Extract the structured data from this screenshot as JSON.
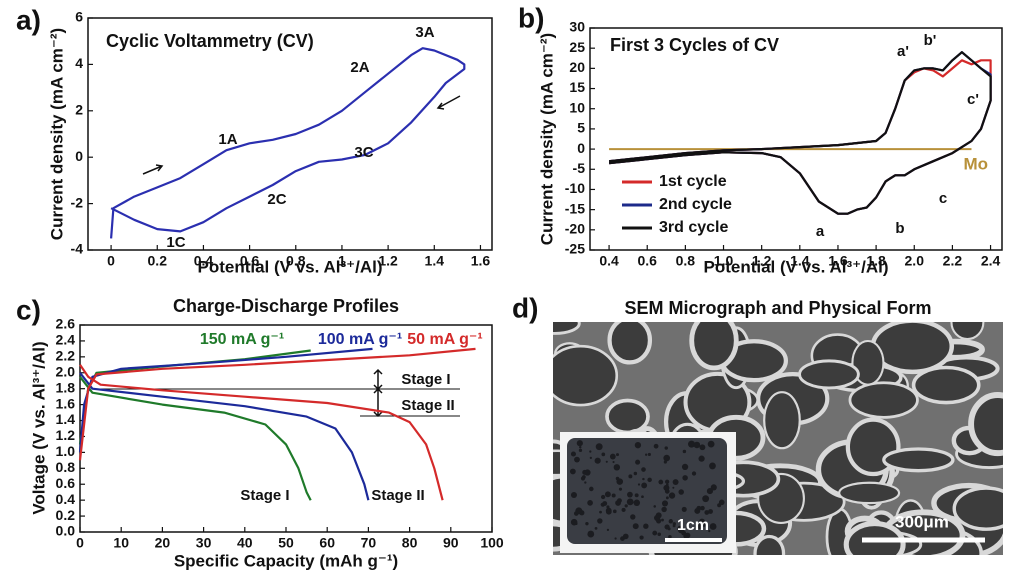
{
  "chart_data": [
    {
      "type": "line",
      "panel_label": "a)",
      "title": "Cyclic Voltammetry (CV)",
      "x_label": "Potential (V vs. Al³⁺/Al)",
      "y_label": "Current density (mA cm⁻²)",
      "xlim": [
        -0.1,
        1.65
      ],
      "ylim": [
        -4,
        6
      ],
      "xticks": [
        0,
        0.2,
        0.4,
        0.6,
        0.8,
        1,
        1.2,
        1.4,
        1.6
      ],
      "yticks": [
        -4,
        -2,
        0,
        2,
        4,
        6
      ],
      "annotations": [
        "1A",
        "2A",
        "3A",
        "1C",
        "2C",
        "3C"
      ],
      "series": [
        {
          "color": "#2b2fb0",
          "x": [
            0,
            0.01,
            0.1,
            0.2,
            0.3,
            0.4,
            0.5,
            0.6,
            0.7,
            0.8,
            0.9,
            1.0,
            1.1,
            1.2,
            1.3,
            1.35,
            1.4,
            1.5,
            1.53,
            1.53,
            1.45,
            1.4,
            1.3,
            1.2,
            1.1,
            1.0,
            0.9,
            0.8,
            0.7,
            0.6,
            0.5,
            0.4,
            0.3,
            0.2,
            0.1,
            0
          ],
          "values": [
            -3.5,
            -2.2,
            -1.7,
            -1.3,
            -0.9,
            -0.3,
            0.3,
            0.6,
            0.75,
            1.0,
            1.4,
            2.0,
            2.8,
            3.6,
            4.4,
            4.7,
            4.6,
            4.2,
            4.0,
            3.8,
            3.2,
            2.6,
            1.5,
            0.6,
            0.1,
            -0.1,
            -0.2,
            -0.6,
            -1.2,
            -1.7,
            -2.2,
            -2.8,
            -3.2,
            -3.1,
            -2.7,
            -2.2
          ]
        }
      ]
    },
    {
      "type": "line",
      "panel_label": "b)",
      "title": "First 3 Cycles of CV",
      "x_label": "Potential (V vs. Al³⁺/Al)",
      "y_label": "Current density (mA cm⁻²)",
      "xlim": [
        0.3,
        2.46
      ],
      "ylim": [
        -25,
        30
      ],
      "xticks": [
        0.4,
        0.6,
        0.8,
        {
          "value": 1,
          "label": "1.0"
        },
        1.2,
        1.4,
        1.6,
        1.8,
        {
          "value": 2,
          "label": "2.0"
        },
        2.2,
        2.4
      ],
      "yticks": [
        -25,
        -20,
        -15,
        -10,
        -5,
        0,
        5,
        10,
        15,
        20,
        25,
        30
      ],
      "annotations": [
        "a'",
        "b'",
        "c'",
        "a",
        "b",
        "c"
      ],
      "legend": "lower-left",
      "reference_line": {
        "name": "Mo",
        "color": "#b8913a",
        "value": 0,
        "x": [
          0.4,
          2.3
        ]
      },
      "series": [
        {
          "name": "1st cycle",
          "color": "#d42a2a",
          "x": [
            0.4,
            0.6,
            0.8,
            1.0,
            1.2,
            1.4,
            1.6,
            1.8,
            1.85,
            1.9,
            1.95,
            2.0,
            2.05,
            2.1,
            2.15,
            2.2,
            2.25,
            2.3,
            2.35,
            2.4,
            2.4,
            2.35,
            2.3,
            2.2,
            2.1,
            2.0,
            1.95,
            1.9,
            1.85,
            1.8,
            1.75,
            1.7,
            1.65,
            1.6,
            1.5,
            1.4,
            1.3,
            1.2,
            1.0,
            0.8,
            0.6,
            0.4
          ],
          "values": [
            -3,
            -2,
            -1,
            -0.3,
            0,
            0.5,
            1,
            2,
            4,
            10,
            17,
            19,
            20,
            19.5,
            18,
            20,
            22,
            21,
            22,
            22,
            12,
            5,
            2,
            -1,
            -3,
            -5,
            -6.5,
            -6.5,
            -8,
            -12,
            -14.5,
            -15,
            -16,
            -16,
            -13,
            -6,
            -2,
            -1,
            -0.8,
            -1.5,
            -2.5,
            -3.5
          ]
        },
        {
          "name": "2nd cycle",
          "color": "#1c2a8a",
          "x": [
            0.4,
            0.6,
            0.8,
            1.0,
            1.2,
            1.4,
            1.6,
            1.8,
            1.85,
            1.9,
            1.95,
            2.0,
            2.05,
            2.1,
            2.15,
            2.2,
            2.25,
            2.3,
            2.35,
            2.4,
            2.4,
            2.35,
            2.3,
            2.2,
            2.1,
            2.0,
            1.95,
            1.9,
            1.85,
            1.8,
            1.75,
            1.7,
            1.65,
            1.6,
            1.5,
            1.4,
            1.3,
            1.2,
            1.0,
            0.8,
            0.6,
            0.4
          ],
          "values": [
            -3,
            -2,
            -1,
            -0.3,
            0,
            0.5,
            1,
            2,
            4,
            10,
            17,
            19.5,
            20,
            20,
            19.5,
            22,
            24,
            22,
            20,
            18.5,
            12,
            5,
            2,
            -1,
            -3,
            -5,
            -6.5,
            -6.5,
            -8,
            -12,
            -14.5,
            -15,
            -16,
            -16,
            -13,
            -6,
            -2,
            -1,
            -0.8,
            -1.5,
            -2.5,
            -3.5
          ]
        },
        {
          "name": "3rd cycle",
          "color": "#111111",
          "x": [
            0.4,
            0.6,
            0.8,
            1.0,
            1.2,
            1.4,
            1.6,
            1.8,
            1.85,
            1.9,
            1.95,
            2.0,
            2.05,
            2.1,
            2.15,
            2.2,
            2.25,
            2.3,
            2.35,
            2.4,
            2.4,
            2.35,
            2.3,
            2.2,
            2.1,
            2.0,
            1.95,
            1.9,
            1.85,
            1.8,
            1.75,
            1.7,
            1.65,
            1.6,
            1.5,
            1.4,
            1.3,
            1.2,
            1.0,
            0.8,
            0.6,
            0.4
          ],
          "values": [
            -3,
            -2,
            -1,
            -0.3,
            0,
            0.5,
            1,
            2,
            4,
            10,
            17,
            19.5,
            20,
            20,
            19.5,
            22,
            24,
            22,
            20,
            18,
            12,
            5,
            2,
            -1,
            -3,
            -5,
            -6.5,
            -6.5,
            -8,
            -12,
            -14.5,
            -15,
            -16,
            -16,
            -13,
            -6,
            -2,
            -1,
            -0.8,
            -1.5,
            -2.5,
            -3.5
          ]
        }
      ]
    },
    {
      "type": "line",
      "panel_label": "c)",
      "title": "Charge-Discharge Profiles",
      "x_label": "Specific Capacity (mAh g⁻¹)",
      "y_label": "Voltage (V vs. Al³⁺/Al)",
      "xlim": [
        0,
        100
      ],
      "ylim": [
        0,
        2.6
      ],
      "xticks": [
        0,
        10,
        20,
        30,
        40,
        50,
        60,
        70,
        80,
        90,
        100
      ],
      "yticks": [
        {
          "value": 0,
          "label": "0.0"
        },
        0.2,
        0.4,
        0.6,
        0.8,
        {
          "value": 1,
          "label": "1.0"
        },
        1.2,
        1.4,
        1.6,
        1.8,
        {
          "value": 2,
          "label": "2.0"
        },
        2.2,
        2.4,
        2.6
      ],
      "annotations": [
        "Stage I",
        "Stage II",
        "Stage I",
        "Stage II"
      ],
      "legend": "top",
      "series": [
        {
          "name": "150 mA g⁻¹",
          "color": "#1f7a2a",
          "x": [
            0,
            2,
            4,
            20,
            40,
            56,
            null,
            0,
            3,
            20,
            35,
            45,
            50,
            53,
            55,
            56
          ],
          "values": [
            1.1,
            1.8,
            2.0,
            2.08,
            2.17,
            2.28,
            null,
            1.95,
            1.75,
            1.6,
            1.5,
            1.35,
            1.1,
            0.8,
            0.5,
            0.4
          ]
        },
        {
          "name": "100 mA g⁻¹",
          "color": "#1c2a9a",
          "x": [
            0,
            1,
            3,
            10,
            30,
            50,
            71,
            null,
            0,
            3,
            20,
            40,
            55,
            62,
            66,
            69,
            70
          ],
          "values": [
            1.0,
            1.6,
            1.95,
            2.05,
            2.12,
            2.2,
            2.3,
            null,
            2.0,
            1.8,
            1.7,
            1.58,
            1.45,
            1.3,
            1.0,
            0.6,
            0.4
          ]
        },
        {
          "name": "50 mA g⁻¹",
          "color": "#d42a2a",
          "x": [
            0,
            2,
            4,
            20,
            40,
            60,
            80,
            96,
            null,
            0,
            2,
            5,
            20,
            40,
            60,
            75,
            80,
            84,
            86,
            88
          ],
          "values": [
            0.9,
            1.8,
            1.98,
            2.05,
            2.1,
            2.16,
            2.22,
            2.3,
            null,
            2.1,
            1.95,
            1.85,
            1.78,
            1.7,
            1.62,
            1.5,
            1.38,
            1.1,
            0.8,
            0.4
          ]
        }
      ]
    }
  ],
  "panel_d": {
    "panel_label": "d)",
    "title": "SEM Micrograph and Physical Form",
    "inset_scale": "1cm",
    "scale": "300μm"
  }
}
